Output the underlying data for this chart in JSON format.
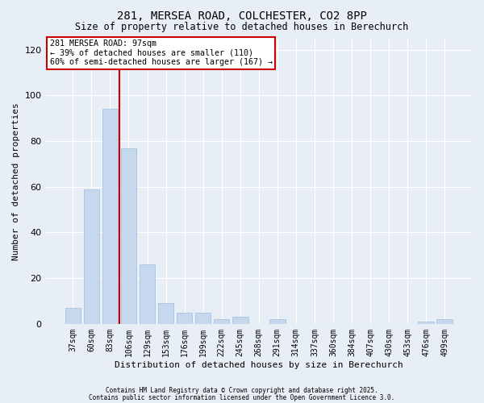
{
  "title1": "281, MERSEA ROAD, COLCHESTER, CO2 8PP",
  "title2": "Size of property relative to detached houses in Berechurch",
  "xlabel": "Distribution of detached houses by size in Berechurch",
  "ylabel": "Number of detached properties",
  "categories": [
    "37sqm",
    "60sqm",
    "83sqm",
    "106sqm",
    "129sqm",
    "153sqm",
    "176sqm",
    "199sqm",
    "222sqm",
    "245sqm",
    "268sqm",
    "291sqm",
    "314sqm",
    "337sqm",
    "360sqm",
    "384sqm",
    "407sqm",
    "430sqm",
    "453sqm",
    "476sqm",
    "499sqm"
  ],
  "values": [
    7,
    59,
    94,
    77,
    26,
    9,
    5,
    5,
    2,
    3,
    0,
    2,
    0,
    0,
    0,
    0,
    0,
    0,
    0,
    1,
    2
  ],
  "bar_color": "#c5d8ee",
  "bar_edge_color": "#a8c4df",
  "vline_x": 2.5,
  "vline_color": "#cc0000",
  "annotation_text": "281 MERSEA ROAD: 97sqm\n← 39% of detached houses are smaller (110)\n60% of semi-detached houses are larger (167) →",
  "annotation_box_color": "#ffffff",
  "annotation_box_edgecolor": "#cc0000",
  "ylim": [
    0,
    125
  ],
  "yticks": [
    0,
    20,
    40,
    60,
    80,
    100,
    120
  ],
  "background_color": "#e8eef5",
  "plot_background_color": "#e8eef5",
  "grid_color": "#ffffff",
  "footer1": "Contains HM Land Registry data © Crown copyright and database right 2025.",
  "footer2": "Contains public sector information licensed under the Open Government Licence 3.0."
}
